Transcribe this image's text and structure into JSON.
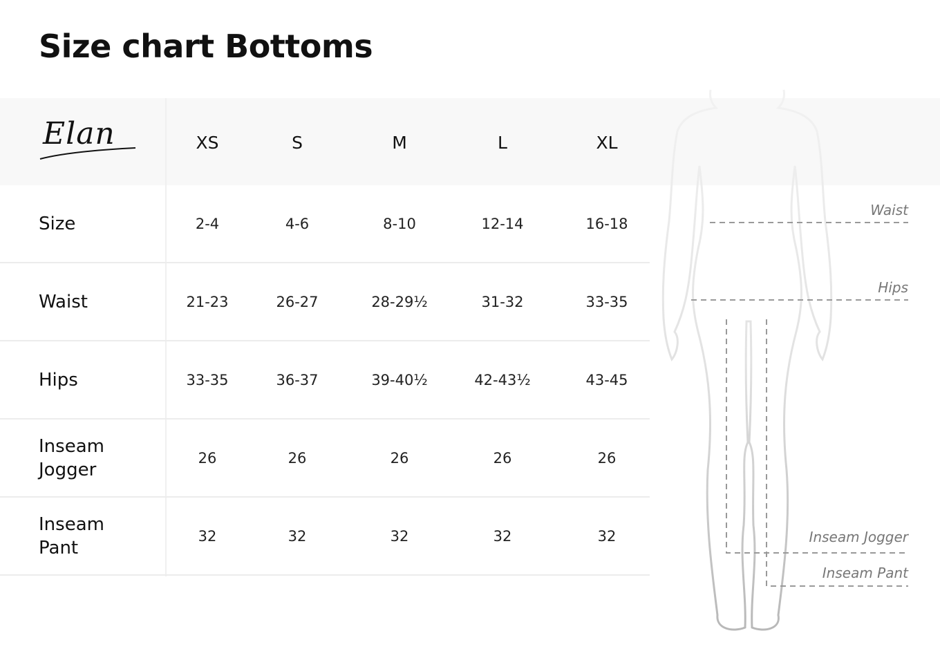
{
  "title": "Size chart Bottoms",
  "brand": "Elan",
  "columns": [
    "XS",
    "S",
    "M",
    "L",
    "XL"
  ],
  "rows": [
    {
      "label": "Size",
      "values": [
        "2-4",
        "4-6",
        "8-10",
        "12-14",
        "16-18"
      ]
    },
    {
      "label": "Waist",
      "values": [
        "21-23",
        "26-27",
        "28-29½",
        "31-32",
        "33-35"
      ]
    },
    {
      "label": "Hips",
      "values": [
        "33-35",
        "36-37",
        "39-40½",
        "42-43½",
        "43-45"
      ]
    },
    {
      "label": "Inseam\nJogger",
      "values": [
        "26",
        "26",
        "26",
        "26",
        "26"
      ]
    },
    {
      "label": "Inseam\nPant",
      "values": [
        "32",
        "32",
        "32",
        "32",
        "32"
      ]
    }
  ],
  "figure_labels": {
    "waist": "Waist",
    "hips": "Hips",
    "inseam_jogger": "Inseam Jogger",
    "inseam_pant": "Inseam Pant"
  }
}
